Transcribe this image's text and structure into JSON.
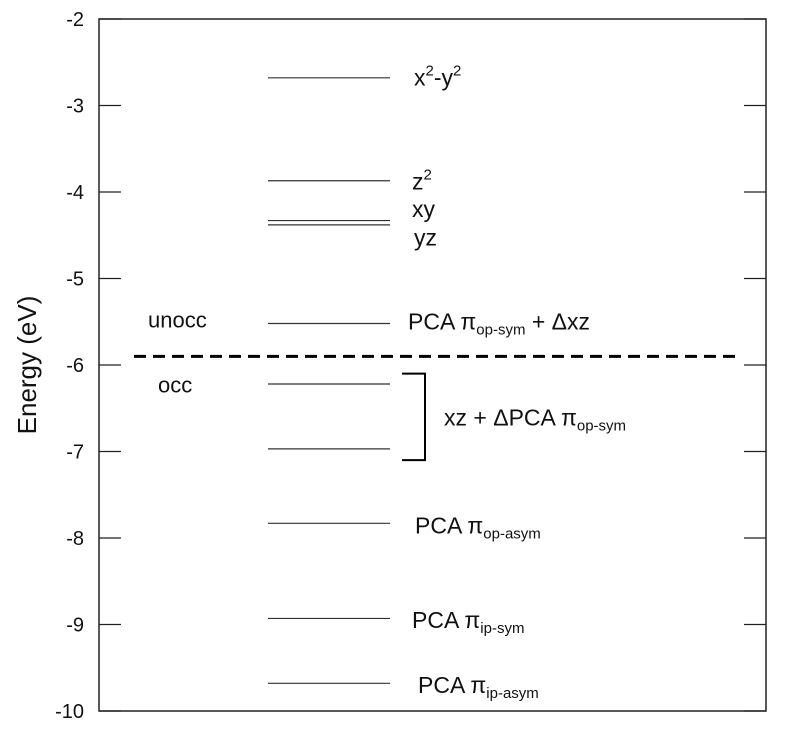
{
  "chart_data": {
    "type": "energy-level-diagram",
    "ylabel": "Energy (eV)",
    "ylim": [
      -10,
      -2
    ],
    "yticks": [
      "-2",
      "-3",
      "-4",
      "-5",
      "-6",
      "-7",
      "-8",
      "-9",
      "-10"
    ],
    "xticks": [],
    "grid": false,
    "frontier_divider": {
      "energy": -5.9,
      "style": "dashed"
    },
    "region_labels": [
      {
        "id": "unocc",
        "text": "unocc",
        "energy": -5.5
      },
      {
        "id": "occ",
        "text": "occ",
        "energy": -6.25
      }
    ],
    "levels": [
      {
        "id": "x2-y2",
        "energy": -2.68
      },
      {
        "id": "z2",
        "energy": -3.87
      },
      {
        "id": "xy",
        "energy": -4.33
      },
      {
        "id": "yz",
        "energy": -4.38
      },
      {
        "id": "pca-op-sym-dxz",
        "energy": -5.52
      },
      {
        "id": "xz-mix-upper",
        "energy": -6.22
      },
      {
        "id": "xz-mix-lower",
        "energy": -6.97
      },
      {
        "id": "pca-op-asym",
        "energy": -7.83
      },
      {
        "id": "pca-ip-sym",
        "energy": -8.93
      },
      {
        "id": "pca-ip-asym",
        "energy": -9.68
      }
    ],
    "annotations": [
      {
        "id": "x2-y2",
        "energy": -2.7,
        "parts": [
          {
            "t": "x"
          },
          {
            "t": "2",
            "sup": true
          },
          {
            "t": "-y"
          },
          {
            "t": "2",
            "sup": true
          }
        ]
      },
      {
        "id": "z2",
        "energy": -3.9,
        "parts": [
          {
            "t": "z"
          },
          {
            "t": "2",
            "sup": true
          }
        ]
      },
      {
        "id": "xy",
        "energy": -4.22,
        "parts": [
          {
            "t": "xy"
          }
        ]
      },
      {
        "id": "yz",
        "energy": -4.55,
        "parts": [
          {
            "t": "yz"
          }
        ]
      },
      {
        "id": "pca-op-sym-dxz",
        "energy": -5.52,
        "parts": [
          {
            "t": "PCA π"
          },
          {
            "t": "op-sym",
            "sub": true
          },
          {
            "t": " + Δxz"
          }
        ]
      },
      {
        "id": "xz-dpca",
        "energy": -6.63,
        "parts": [
          {
            "t": "xz + ΔPCA π"
          },
          {
            "t": "op-sym",
            "sub": true
          }
        ]
      },
      {
        "id": "pca-op-asym",
        "energy": -7.88,
        "parts": [
          {
            "t": "PCA π"
          },
          {
            "t": "op-asym",
            "sub": true
          }
        ]
      },
      {
        "id": "pca-ip-sym",
        "energy": -8.97,
        "parts": [
          {
            "t": "PCA π"
          },
          {
            "t": "ip-sym",
            "sub": true
          }
        ]
      },
      {
        "id": "pca-ip-asym",
        "energy": -9.72,
        "parts": [
          {
            "t": "PCA π"
          },
          {
            "t": "ip-asym",
            "sub": true
          }
        ]
      }
    ],
    "bracket": {
      "from_energy": -6.1,
      "to_energy": -7.1,
      "groups": [
        "xz-mix-upper",
        "xz-mix-lower"
      ]
    }
  }
}
